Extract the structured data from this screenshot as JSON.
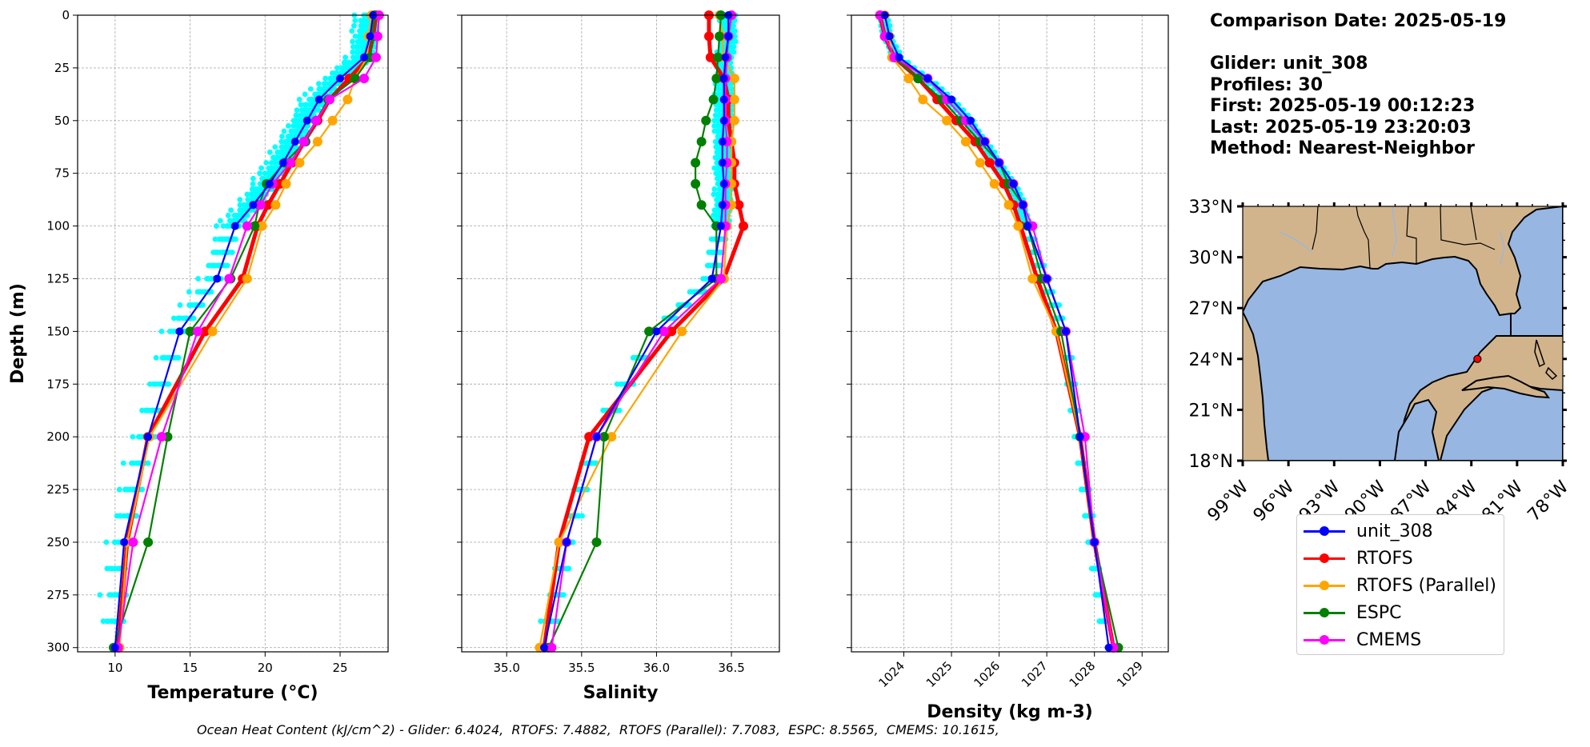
{
  "info": {
    "comparison_date": "Comparison Date: 2025-05-19",
    "glider": "Glider: unit_308",
    "profiles": "Profiles: 30",
    "first": "First: 2025-05-19 00:12:23",
    "last": "Last: 2025-05-19 23:20:03",
    "method": "Method: Nearest-Neighbor"
  },
  "ohc_text": "Ocean Heat Content (kJ/cm^2) - Glider: 6.4024,  RTOFS: 7.4882,  RTOFS (Parallel): 7.7083,  ESPC: 8.5565,  CMEMS: 10.1615,",
  "colors": {
    "glider": "#0000ff",
    "rtofs": "#ff0000",
    "parallel": "#ffa500",
    "espc": "#008000",
    "cmems": "#ff00ff",
    "raw": "#00ffff",
    "ocean": "#97b6e1",
    "land": "#d2b48c"
  },
  "legend": [
    {
      "label": "unit_308",
      "color": "#0000ff"
    },
    {
      "label": "RTOFS",
      "color": "#ff0000"
    },
    {
      "label": "RTOFS (Parallel)",
      "color": "#ffa500"
    },
    {
      "label": "ESPC",
      "color": "#008000"
    },
    {
      "label": "CMEMS",
      "color": "#ff00ff"
    }
  ],
  "chart_data": [
    {
      "type": "line",
      "xlabel": "Temperature (°C)",
      "ylabel": "Depth (m)",
      "xlim": [
        7.5,
        28.2
      ],
      "ylim": [
        302,
        0
      ],
      "xticks": [
        10,
        15,
        20,
        25
      ],
      "yticks": [
        0,
        25,
        50,
        75,
        100,
        125,
        150,
        175,
        200,
        225,
        250,
        275,
        300
      ],
      "grid": true,
      "depth": [
        0,
        10,
        20,
        30,
        40,
        50,
        60,
        70,
        80,
        90,
        100,
        125,
        150,
        200,
        250,
        300
      ],
      "series": [
        {
          "name": "unit_308",
          "values": [
            27.2,
            27.0,
            26.6,
            25.0,
            23.6,
            22.8,
            22.0,
            21.2,
            20.3,
            19.2,
            18.0,
            16.8,
            14.3,
            12.2,
            10.6,
            10.0
          ]
        },
        {
          "name": "RTOFS",
          "values": [
            27.4,
            27.2,
            26.9,
            25.6,
            24.3,
            23.5,
            22.6,
            21.8,
            21.0,
            20.2,
            19.5,
            18.5,
            16.0,
            12.2,
            10.8,
            10.2
          ]
        },
        {
          "name": "RTOFS (Parallel)",
          "values": [
            27.1,
            26.9,
            26.8,
            26.0,
            25.5,
            24.5,
            23.5,
            22.3,
            21.4,
            20.7,
            19.8,
            18.8,
            16.5,
            12.3,
            10.8,
            10.3
          ]
        },
        {
          "name": "ESPC",
          "values": [
            27.3,
            27.2,
            27.0,
            26.0,
            24.2,
            23.4,
            22.7,
            21.3,
            20.1,
            19.6,
            19.3,
            17.7,
            15.0,
            13.5,
            12.2,
            9.9
          ]
        },
        {
          "name": "CMEMS",
          "values": [
            27.6,
            27.5,
            27.4,
            26.6,
            24.3,
            23.4,
            22.6,
            21.7,
            20.5,
            19.7,
            18.8,
            17.6,
            15.5,
            13.1,
            11.2,
            10.2
          ]
        }
      ],
      "raw_profiles": {
        "name": "glider profiles",
        "color": "#00ffff",
        "spread": 1.0
      }
    },
    {
      "type": "line",
      "xlabel": "Salinity",
      "xlim": [
        34.7,
        36.82
      ],
      "ylim": [
        302,
        0
      ],
      "xticks": [
        35.0,
        35.5,
        36.0,
        36.5
      ],
      "xticklabels": [
        "35.0",
        "35.5",
        "36.0",
        "36.5"
      ],
      "grid": true,
      "depth": [
        0,
        10,
        20,
        30,
        40,
        50,
        60,
        70,
        80,
        90,
        100,
        125,
        150,
        200,
        250,
        300
      ],
      "series": [
        {
          "name": "unit_308",
          "values": [
            36.48,
            36.48,
            36.46,
            36.45,
            36.45,
            36.45,
            36.44,
            36.44,
            36.45,
            36.44,
            36.43,
            36.37,
            36.0,
            35.6,
            35.4,
            35.25
          ]
        },
        {
          "name": "RTOFS",
          "values": [
            36.35,
            36.35,
            36.36,
            36.45,
            36.48,
            36.48,
            36.5,
            36.52,
            36.52,
            36.55,
            36.58,
            36.45,
            36.1,
            35.55,
            35.35,
            35.25
          ]
        },
        {
          "name": "RTOFS (Parallel)",
          "values": [
            36.42,
            36.44,
            36.45,
            36.52,
            36.52,
            36.52,
            36.5,
            36.5,
            36.5,
            36.5,
            36.47,
            36.45,
            36.17,
            35.7,
            35.35,
            35.22
          ]
        },
        {
          "name": "ESPC",
          "values": [
            36.43,
            36.42,
            36.41,
            36.4,
            36.38,
            36.33,
            36.3,
            36.26,
            36.26,
            36.3,
            36.4,
            36.4,
            35.95,
            35.65,
            35.6,
            35.28
          ]
        },
        {
          "name": "CMEMS",
          "values": [
            36.5,
            36.48,
            36.47,
            36.46,
            36.46,
            36.46,
            36.47,
            36.47,
            36.46,
            36.46,
            36.46,
            36.43,
            36.05,
            35.6,
            35.4,
            35.3
          ]
        }
      ],
      "raw_profiles": {
        "name": "glider profiles",
        "color": "#00ffff",
        "spread": 0.07
      }
    },
    {
      "type": "line",
      "xlabel": "Density (kg m-3)",
      "xlim": [
        1022.9,
        1029.55
      ],
      "ylim": [
        302,
        0
      ],
      "xticks": [
        1024,
        1025,
        1026,
        1027,
        1028,
        1029
      ],
      "grid": true,
      "depth": [
        0,
        10,
        20,
        30,
        40,
        50,
        60,
        70,
        80,
        90,
        100,
        125,
        150,
        200,
        250,
        300
      ],
      "series": [
        {
          "name": "unit_308",
          "values": [
            1023.6,
            1023.7,
            1023.9,
            1024.5,
            1025.0,
            1025.4,
            1025.7,
            1026.0,
            1026.3,
            1026.5,
            1026.6,
            1027.0,
            1027.4,
            1027.7,
            1028.0,
            1028.3
          ]
        },
        {
          "name": "RTOFS",
          "values": [
            1023.5,
            1023.6,
            1023.8,
            1024.3,
            1024.7,
            1025.1,
            1025.5,
            1025.8,
            1026.1,
            1026.3,
            1026.45,
            1026.8,
            1027.2,
            1027.7,
            1028.0,
            1028.4
          ]
        },
        {
          "name": "RTOFS (Parallel)",
          "values": [
            1023.6,
            1023.7,
            1023.75,
            1024.1,
            1024.4,
            1024.9,
            1025.3,
            1025.6,
            1025.9,
            1026.2,
            1026.4,
            1026.7,
            1027.2,
            1027.7,
            1028.0,
            1028.4
          ]
        },
        {
          "name": "ESPC",
          "values": [
            1023.5,
            1023.6,
            1023.8,
            1024.3,
            1024.8,
            1025.2,
            1025.6,
            1026.0,
            1026.2,
            1026.5,
            1026.6,
            1026.9,
            1027.3,
            1027.7,
            1028.0,
            1028.5
          ]
        },
        {
          "name": "CMEMS",
          "values": [
            1023.5,
            1023.6,
            1023.8,
            1024.5,
            1024.9,
            1025.3,
            1025.7,
            1026.0,
            1026.3,
            1026.5,
            1026.7,
            1027.0,
            1027.4,
            1027.8,
            1028.0,
            1028.4
          ]
        }
      ],
      "raw_profiles": {
        "name": "glider profiles",
        "color": "#00ffff",
        "spread": 0.12
      }
    }
  ],
  "map": {
    "lon_range": [
      -99,
      -78
    ],
    "lat_range": [
      18,
      33
    ],
    "lon_ticks": [
      "99°W",
      "96°W",
      "93°W",
      "90°W",
      "87°W",
      "84°W",
      "81°W",
      "78°W"
    ],
    "lat_ticks": [
      "33°N",
      "30°N",
      "27°N",
      "24°N",
      "21°N",
      "18°N"
    ],
    "lon_values": [
      -99,
      -96,
      -93,
      -90,
      -87,
      -84,
      -81,
      -78
    ],
    "lat_values": [
      33,
      30,
      27,
      24,
      21,
      18
    ],
    "glider_position": {
      "lon": -83.6,
      "lat": 24.0
    }
  }
}
